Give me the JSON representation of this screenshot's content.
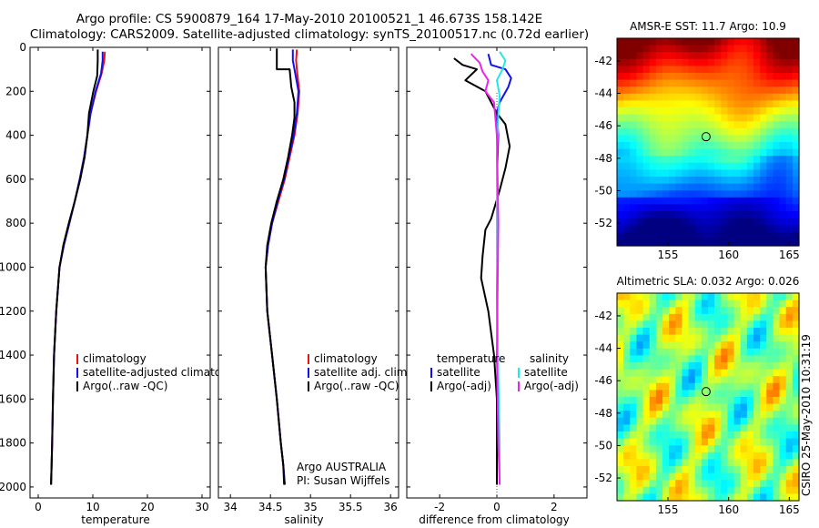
{
  "title": {
    "line1": "Argo profile: CS 5900879_164 17-May-2010 20100521_1 46.673S 158.142E",
    "line2": "Climatology: CARS2009. Satellite-adjusted climatology: synTS_20100517.nc (0.72d earlier)"
  },
  "side_label": "CSIRO 25-May-2010 10:31:19",
  "colors": {
    "climatology": "#ee1111",
    "satellite": "#1010ee",
    "argo": "#000000",
    "salinity_sat": "#22e8e8",
    "salinity_argo": "#ee22ee",
    "marker": "#000000"
  },
  "chart_data": [
    {
      "type": "line",
      "name": "temperature-profile",
      "xlabel": "temperature",
      "ylabel": "",
      "xlim": [
        -1.5,
        31.5
      ],
      "ylim": [
        0,
        2050
      ],
      "y_inverted": true,
      "xticks": [
        0,
        10,
        20,
        30
      ],
      "xtick_labels": [
        "0",
        "10",
        "20",
        "30"
      ],
      "yticks": [
        0,
        200,
        400,
        600,
        800,
        1000,
        1200,
        1400,
        1600,
        1800,
        2000
      ],
      "ytick_labels": [
        "0",
        "200",
        "400",
        "600",
        "800",
        "1000",
        "1200",
        "1400",
        "1600",
        "1800",
        "2000"
      ],
      "legend_position": "lower-right",
      "series": [
        {
          "name": "climatology",
          "label": "climatology",
          "color_key": "climatology",
          "x": [
            12.2,
            12.1,
            11.6,
            10.6,
            9.6,
            9.0,
            8.4,
            7.6,
            6.7,
            5.7,
            4.7,
            3.9,
            3.3,
            2.9,
            2.7,
            2.55,
            2.45,
            2.35
          ],
          "y": [
            20,
            60,
            120,
            200,
            300,
            400,
            500,
            600,
            700,
            800,
            900,
            1000,
            1200,
            1400,
            1600,
            1800,
            1900,
            1990
          ]
        },
        {
          "name": "satellite-adjusted climatology",
          "label": "satellite-adjusted climatology",
          "color_key": "satellite",
          "x": [
            11.8,
            11.8,
            11.5,
            10.5,
            9.6,
            9.0,
            8.4,
            7.6,
            6.7,
            5.7,
            4.7,
            3.9,
            3.3,
            2.9,
            2.7,
            2.55,
            2.45,
            2.35
          ],
          "y": [
            20,
            60,
            120,
            200,
            300,
            400,
            500,
            600,
            700,
            800,
            900,
            1000,
            1200,
            1400,
            1600,
            1800,
            1900,
            1990
          ]
        },
        {
          "name": "Argo(..raw -QC)",
          "label": "Argo(..raw -QC)",
          "color_key": "argo",
          "x": [
            10.9,
            10.9,
            10.8,
            10.1,
            9.3,
            9.0,
            8.5,
            7.7,
            6.7,
            5.6,
            4.6,
            3.9,
            3.3,
            2.9,
            2.7,
            2.55,
            2.45,
            2.35
          ],
          "y": [
            10,
            60,
            130,
            200,
            300,
            400,
            500,
            600,
            700,
            800,
            900,
            1000,
            1200,
            1400,
            1600,
            1800,
            1900,
            1990
          ]
        }
      ]
    },
    {
      "type": "line",
      "name": "salinity-profile",
      "xlabel": "salinity",
      "ylabel": "",
      "xlim": [
        33.85,
        36.1
      ],
      "ylim": [
        0,
        2050
      ],
      "y_inverted": true,
      "xticks": [
        34,
        34.5,
        35,
        35.5,
        36
      ],
      "xtick_labels": [
        "34",
        "34.5",
        "35",
        "35.5",
        "36"
      ],
      "yticks": [
        0,
        200,
        400,
        600,
        800,
        1000,
        1200,
        1400,
        1600,
        1800,
        2000
      ],
      "legend_position": "lower-right",
      "annotation_line1": "Argo AUSTRALIA",
      "annotation_line2": "PI: Susan Wijffels",
      "series": [
        {
          "name": "climatology",
          "label": "climatology",
          "color_key": "climatology",
          "x": [
            34.83,
            34.82,
            34.83,
            34.86,
            34.84,
            34.8,
            34.74,
            34.68,
            34.6,
            34.52,
            34.47,
            34.44,
            34.46,
            34.52,
            34.58,
            34.63,
            34.66,
            34.68
          ],
          "y": [
            10,
            60,
            100,
            200,
            300,
            400,
            500,
            600,
            700,
            800,
            900,
            1000,
            1200,
            1400,
            1600,
            1800,
            1900,
            1990
          ]
        },
        {
          "name": "satellite adj. clim.",
          "label": "satellite adj. clim.",
          "color_key": "satellite",
          "x": [
            34.78,
            34.78,
            34.8,
            34.85,
            34.83,
            34.79,
            34.73,
            34.67,
            34.59,
            34.52,
            34.47,
            34.44,
            34.46,
            34.52,
            34.58,
            34.63,
            34.66,
            34.68
          ],
          "y": [
            10,
            60,
            100,
            200,
            300,
            400,
            500,
            600,
            700,
            800,
            900,
            1000,
            1200,
            1400,
            1600,
            1800,
            1900,
            1990
          ]
        },
        {
          "name": "Argo(..raw -QC)",
          "label": "Argo(..raw -QC)",
          "color_key": "argo",
          "x": [
            34.58,
            34.58,
            34.74,
            34.76,
            34.8,
            34.8,
            34.77,
            34.72,
            34.66,
            34.58,
            34.51,
            34.46,
            34.44,
            34.46,
            34.52,
            34.58,
            34.63,
            34.66,
            34.67
          ],
          "y": [
            5,
            100,
            100,
            180,
            250,
            320,
            400,
            500,
            600,
            700,
            800,
            900,
            1000,
            1200,
            1400,
            1600,
            1800,
            1900,
            1990
          ]
        }
      ]
    },
    {
      "type": "line",
      "name": "difference-profile",
      "xlabel": "difference from climatology",
      "ylabel": "",
      "xlim": [
        -3.15,
        3.15
      ],
      "ylim": [
        0,
        2050
      ],
      "y_inverted": true,
      "xticks": [
        -2,
        0,
        2
      ],
      "xtick_labels": [
        "-2",
        "0",
        "2"
      ],
      "yticks": [
        0,
        200,
        400,
        600,
        800,
        1000,
        1200,
        1400,
        1600,
        1800,
        2000
      ],
      "legend_position": "lower-right",
      "legend_heading_left": "temperature",
      "legend_heading_right": "salinity",
      "series": [
        {
          "name": "temperature satellite",
          "label": "satellite",
          "color_key": "satellite",
          "legend_column": "left",
          "x": [
            -0.3,
            -0.2,
            0.3,
            0.5,
            0.4,
            0.1,
            0.0,
            0.05,
            0.0,
            0.0,
            0.02,
            0.0,
            0.0
          ],
          "y": [
            30,
            80,
            100,
            140,
            180,
            250,
            300,
            400,
            600,
            1000,
            1400,
            1800,
            1990
          ]
        },
        {
          "name": "temperature Argo(-adj)",
          "label": "Argo(-adj)",
          "color_key": "argo",
          "legend_column": "left",
          "x": [
            -1.5,
            -1.2,
            -0.7,
            -1.1,
            -0.4,
            0.0,
            0.3,
            0.45,
            0.3,
            0.1,
            -0.2,
            -0.4,
            -0.5,
            -0.55,
            -0.3,
            -0.1,
            0.0,
            0.0
          ],
          "y": [
            50,
            80,
            100,
            150,
            200,
            300,
            350,
            450,
            550,
            650,
            780,
            830,
            950,
            1050,
            1200,
            1400,
            1600,
            1990
          ]
        },
        {
          "name": "salinity satellite",
          "label": "satellite",
          "color_key": "salinity_sat",
          "legend_column": "right",
          "x": [
            0.1,
            0.3,
            0.2,
            0.0,
            0.1,
            0.05,
            0.0,
            0.0,
            0.05,
            0.1,
            0.1
          ],
          "y": [
            20,
            60,
            100,
            150,
            220,
            300,
            500,
            1000,
            1500,
            1800,
            1990
          ]
        },
        {
          "name": "salinity Argo(-adj)",
          "label": "Argo(-adj)",
          "color_key": "salinity_argo",
          "legend_column": "right",
          "x": [
            -0.9,
            -0.6,
            -0.5,
            -0.3,
            -0.4,
            -0.1,
            0.0,
            0.05,
            0.0,
            0.05,
            0.1
          ],
          "y": [
            30,
            70,
            110,
            150,
            200,
            250,
            400,
            800,
            1400,
            1800,
            1990
          ]
        }
      ]
    },
    {
      "type": "heatmap",
      "name": "amsr-e-sst-map",
      "title": "AMSR-E SST: 11.7  Argo: 10.9",
      "xlim": [
        150.8,
        165.8
      ],
      "ylim": [
        -53.4,
        -40.6
      ],
      "xticks": [
        155,
        160,
        165
      ],
      "xtick_labels": [
        "155",
        "160",
        "165"
      ],
      "yticks": [
        -42,
        -44,
        -46,
        -48,
        -50,
        -52
      ],
      "ytick_labels": [
        "-42",
        "-44",
        "-46",
        "-48",
        "-50",
        "-52"
      ],
      "marker": {
        "lon": 158.142,
        "lat": -46.673
      }
    },
    {
      "type": "heatmap",
      "name": "altimetric-sla-map",
      "title": "Altimetric SLA: 0.032  Argo: 0.026",
      "xlim": [
        150.8,
        165.8
      ],
      "ylim": [
        -53.4,
        -40.6
      ],
      "xticks": [
        155,
        160,
        165
      ],
      "xtick_labels": [
        "155",
        "160",
        "165"
      ],
      "yticks": [
        -42,
        -44,
        -46,
        -48,
        -50,
        -52
      ],
      "ytick_labels": [
        "-42",
        "-44",
        "-46",
        "-48",
        "-50",
        "-52"
      ],
      "marker": {
        "lon": 158.142,
        "lat": -46.673
      }
    }
  ]
}
